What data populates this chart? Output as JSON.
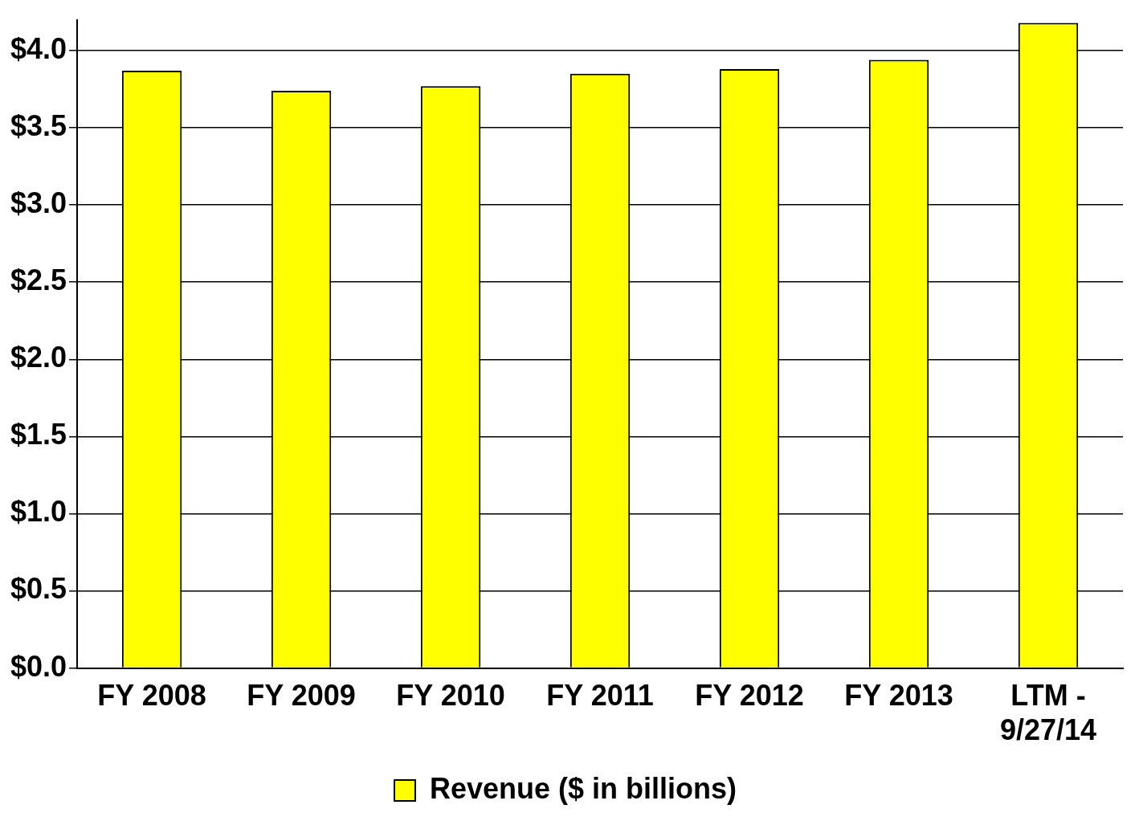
{
  "chart_data": {
    "type": "bar",
    "categories": [
      "FY 2008",
      "FY 2009",
      "FY 2010",
      "FY 2011",
      "FY 2012",
      "FY 2013",
      [
        "LTM -",
        "9/27/14"
      ]
    ],
    "series": [
      {
        "name": "Revenue ($ in billions)",
        "color": "#ffff00",
        "values": [
          3.87,
          3.74,
          3.77,
          3.85,
          3.88,
          3.94,
          4.18
        ]
      }
    ],
    "ylim": [
      0,
      4.2
    ],
    "yticks": [
      {
        "value": 0,
        "label": "$0.0"
      },
      {
        "value": 0.5,
        "label": "$0.5"
      },
      {
        "value": 1,
        "label": "$1.0"
      },
      {
        "value": 1.5,
        "label": "$1.5"
      },
      {
        "value": 2,
        "label": "$2.0"
      },
      {
        "value": 2.5,
        "label": "$2.5"
      },
      {
        "value": 3,
        "label": "$3.0"
      },
      {
        "value": 3.5,
        "label": "$3.5"
      },
      {
        "value": 4,
        "label": "$4.0"
      }
    ],
    "grid": "y",
    "legend": "bottom"
  }
}
